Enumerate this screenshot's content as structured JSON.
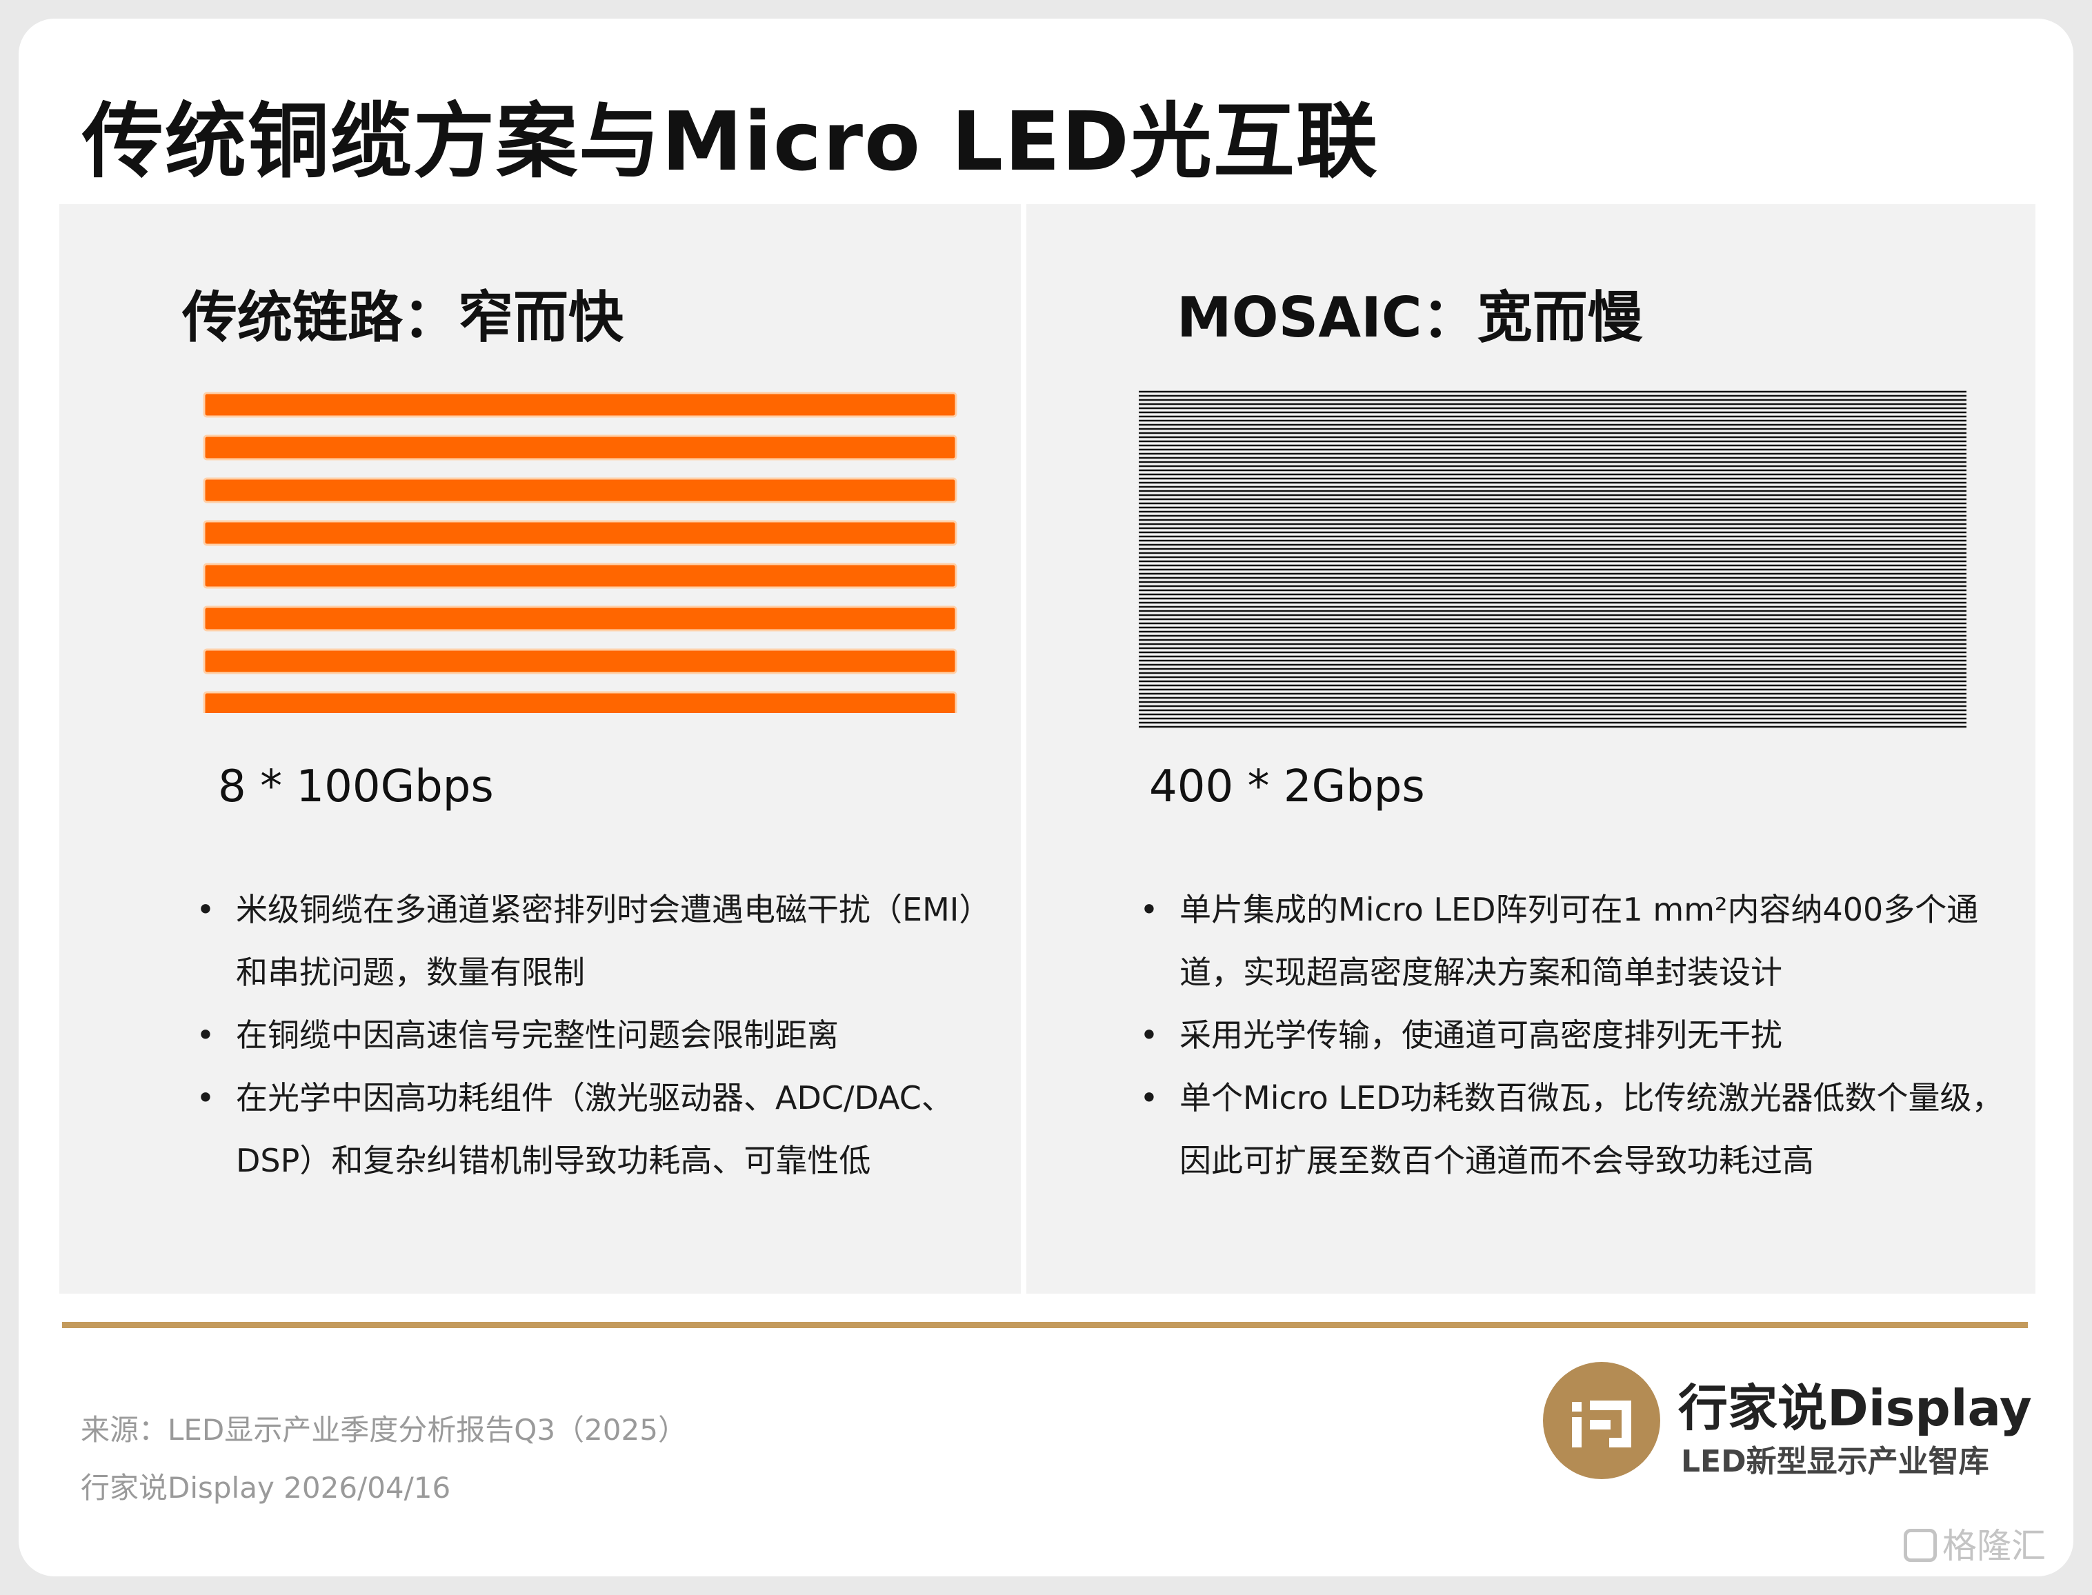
{
  "title": "传统铜缆方案与Micro LED光互联",
  "left_panel": {
    "heading": "传统链路：窄而快",
    "spec": "8 * 100Gbps",
    "lane_count": 8,
    "lane_color": "#ff6600",
    "bullets": [
      "米级铜缆在多通道紧密排列时会遭遇电磁干扰（EMI）和串扰问题，数量有限制",
      "在铜缆中因高速信号完整性问题会限制距离",
      "在光学中因高功耗组件（激光驱动器、ADC/DAC、DSP）和复杂纠错机制导致功耗高、可靠性低"
    ]
  },
  "right_panel": {
    "heading": "MOSAIC：宽而慢",
    "spec": "400 * 2Gbps",
    "line_color": "#111111",
    "bullets": [
      "单片集成的Micro LED阵列可在1 mm²内容纳400多个通道，实现超高密度解决方案和简单封装设计",
      "采用光学传输，使通道可高密度排列无干扰",
      "单个Micro LED功耗数百微瓦，比传统激光器低数个量级，因此可扩展至数百个通道而不会导致功耗过高"
    ]
  },
  "footer": {
    "source": "来源：LED显示产业季度分析报告Q3（2025）",
    "credit": "行家说Display 2026/04/16",
    "brand_name": "行家说Display",
    "brand_tagline": "LED新型显示产业智库",
    "brand_color": "#b48c54",
    "rule_color": "#c39a5c",
    "watermark": "格隆汇"
  },
  "bullet_marker": "•"
}
